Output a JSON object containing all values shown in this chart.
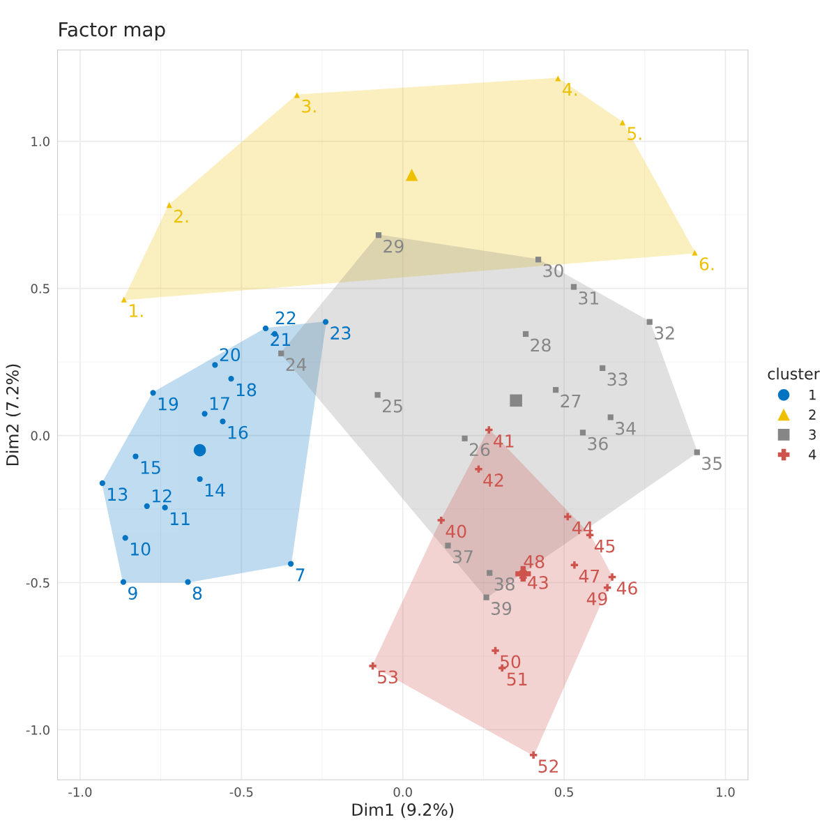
{
  "chart_data": {
    "type": "scatter",
    "title": "Factor map",
    "xlabel": "Dim1 (9.2%)",
    "ylabel": "Dim2 (7.2%)",
    "legend_title": "cluster",
    "xlim": [
      -1.07,
      1.07
    ],
    "ylim": [
      -1.17,
      1.31
    ],
    "xticks": [
      {
        "value": -1.0,
        "label": "-1.0"
      },
      {
        "value": -0.5,
        "label": "-0.5"
      },
      {
        "value": 0.0,
        "label": "0.0"
      },
      {
        "value": 0.5,
        "label": "0.5"
      },
      {
        "value": 1.0,
        "label": "1.0"
      }
    ],
    "yticks": [
      {
        "value": -1.0,
        "label": "-1.0"
      },
      {
        "value": -0.5,
        "label": "-0.5"
      },
      {
        "value": 0.0,
        "label": "0.0"
      },
      {
        "value": 0.5,
        "label": "0.5"
      },
      {
        "value": 1.0,
        "label": "1.0"
      }
    ],
    "grid": true,
    "legend": "right",
    "series": [
      {
        "name": "1",
        "color": "#0073c2",
        "marker": "circle",
        "x": [
          -0.347,
          -0.666,
          -0.866,
          -0.86,
          -0.737,
          -0.793,
          -0.931,
          -0.629,
          -0.828,
          -0.558,
          -0.614,
          -0.532,
          -0.774,
          -0.582,
          -0.425,
          -0.397,
          -0.239
        ],
        "values": [
          -0.436,
          -0.498,
          -0.498,
          -0.348,
          -0.245,
          -0.24,
          -0.162,
          -0.148,
          -0.071,
          0.048,
          0.074,
          0.193,
          0.145,
          0.24,
          0.364,
          0.345,
          0.386
        ]
      },
      {
        "name": "2",
        "color": "#efc000",
        "marker": "triangle",
        "x": [
          -0.864,
          -0.724,
          -0.328,
          0.481,
          0.681,
          0.905
        ],
        "values": [
          0.462,
          0.783,
          1.157,
          1.214,
          1.064,
          0.621
        ]
      },
      {
        "name": "3",
        "color": "#868686",
        "marker": "square",
        "x": [
          -0.377,
          -0.078,
          0.192,
          0.474,
          0.381,
          -0.075,
          0.42,
          0.53,
          0.765,
          0.619,
          0.644,
          0.912,
          0.558,
          0.14,
          0.269,
          0.259
        ],
        "values": [
          0.279,
          0.138,
          -0.01,
          0.155,
          0.345,
          0.681,
          0.598,
          0.505,
          0.386,
          0.229,
          0.062,
          -0.057,
          0.01,
          -0.374,
          -0.467,
          -0.55
        ]
      },
      {
        "name": "4",
        "color": "#cd534c",
        "marker": "cross",
        "x": [
          0.119,
          0.267,
          0.235,
          0.373,
          0.511,
          0.58,
          0.649,
          0.532,
          0.373,
          0.634,
          0.287,
          0.308,
          0.405,
          -0.093
        ],
        "values": [
          -0.288,
          0.019,
          -0.114,
          -0.462,
          -0.276,
          -0.338,
          -0.481,
          -0.44,
          -0.483,
          -0.517,
          -0.731,
          -0.79,
          -1.086,
          -0.783
        ]
      },
      {
        "color": "#0073c2",
        "marker": "circle",
        "x": [
          -0.629
        ],
        "values": [
          -0.05
        ]
      },
      {
        "color": "#efc000",
        "marker": "triangle",
        "x": [
          0.028
        ],
        "values": [
          0.886
        ]
      },
      {
        "color": "#868686",
        "marker": "square",
        "x": [
          0.351
        ],
        "values": [
          0.119
        ]
      },
      {
        "color": "#cd534c",
        "marker": "cross",
        "x": [
          0.373
        ],
        "values": [
          -0.47
        ]
      }
    ],
    "annotations": [
      {
        "text": "7",
        "x": -0.347,
        "y": -0.436
      },
      {
        "text": "8",
        "x": -0.666,
        "y": -0.498
      },
      {
        "text": "9",
        "x": -0.866,
        "y": -0.498
      },
      {
        "text": "10",
        "x": -0.86,
        "y": -0.348
      },
      {
        "text": "11",
        "x": -0.737,
        "y": -0.245
      },
      {
        "text": "12",
        "x": -0.793,
        "y": -0.24
      },
      {
        "text": "13",
        "x": -0.931,
        "y": -0.162
      },
      {
        "text": "14",
        "x": -0.629,
        "y": -0.148
      },
      {
        "text": "15",
        "x": -0.828,
        "y": -0.071
      },
      {
        "text": "16",
        "x": -0.558,
        "y": 0.048
      },
      {
        "text": "17",
        "x": -0.614,
        "y": 0.074
      },
      {
        "text": "18",
        "x": -0.532,
        "y": 0.193
      },
      {
        "text": "19",
        "x": -0.774,
        "y": 0.145
      },
      {
        "text": "20",
        "x": -0.582,
        "y": 0.24
      },
      {
        "text": "21",
        "x": -0.425,
        "y": 0.364
      },
      {
        "text": "22",
        "x": -0.397,
        "y": 0.345
      },
      {
        "text": "23",
        "x": -0.239,
        "y": 0.386
      },
      {
        "text": "1.",
        "x": -0.864,
        "y": 0.462
      },
      {
        "text": "2.",
        "x": -0.724,
        "y": 0.783
      },
      {
        "text": "3.",
        "x": -0.328,
        "y": 1.157
      },
      {
        "text": "4.",
        "x": 0.481,
        "y": 1.214
      },
      {
        "text": "5.",
        "x": 0.681,
        "y": 1.064
      },
      {
        "text": "6.",
        "x": 0.905,
        "y": 0.621
      },
      {
        "text": "24",
        "x": -0.377,
        "y": 0.279
      },
      {
        "text": "25",
        "x": -0.078,
        "y": 0.138
      },
      {
        "text": "26",
        "x": 0.192,
        "y": -0.01
      },
      {
        "text": "27",
        "x": 0.474,
        "y": 0.155
      },
      {
        "text": "28",
        "x": 0.381,
        "y": 0.345
      },
      {
        "text": "29",
        "x": -0.075,
        "y": 0.681
      },
      {
        "text": "30",
        "x": 0.42,
        "y": 0.598
      },
      {
        "text": "31",
        "x": 0.53,
        "y": 0.505
      },
      {
        "text": "32",
        "x": 0.765,
        "y": 0.386
      },
      {
        "text": "33",
        "x": 0.619,
        "y": 0.229
      },
      {
        "text": "34",
        "x": 0.644,
        "y": 0.062
      },
      {
        "text": "35",
        "x": 0.912,
        "y": -0.057
      },
      {
        "text": "36",
        "x": 0.558,
        "y": 0.01
      },
      {
        "text": "37",
        "x": 0.14,
        "y": -0.374
      },
      {
        "text": "38",
        "x": 0.269,
        "y": -0.467
      },
      {
        "text": "39",
        "x": 0.259,
        "y": -0.55
      },
      {
        "text": "40",
        "x": 0.119,
        "y": -0.288
      },
      {
        "text": "41",
        "x": 0.267,
        "y": 0.019
      },
      {
        "text": "42",
        "x": 0.235,
        "y": -0.114
      },
      {
        "text": "43",
        "x": 0.373,
        "y": -0.462
      },
      {
        "text": "44",
        "x": 0.511,
        "y": -0.276
      },
      {
        "text": "45",
        "x": 0.58,
        "y": -0.338
      },
      {
        "text": "46",
        "x": 0.649,
        "y": -0.481
      },
      {
        "text": "47",
        "x": 0.532,
        "y": -0.44
      },
      {
        "text": "48",
        "x": 0.373,
        "y": -0.483
      },
      {
        "text": "49",
        "x": 0.634,
        "y": -0.517
      },
      {
        "text": "50",
        "x": 0.287,
        "y": -0.731
      },
      {
        "text": "51",
        "x": 0.308,
        "y": -0.79
      },
      {
        "text": "52",
        "x": 0.405,
        "y": -1.086
      },
      {
        "text": "53",
        "x": -0.093,
        "y": -0.783
      }
    ]
  }
}
